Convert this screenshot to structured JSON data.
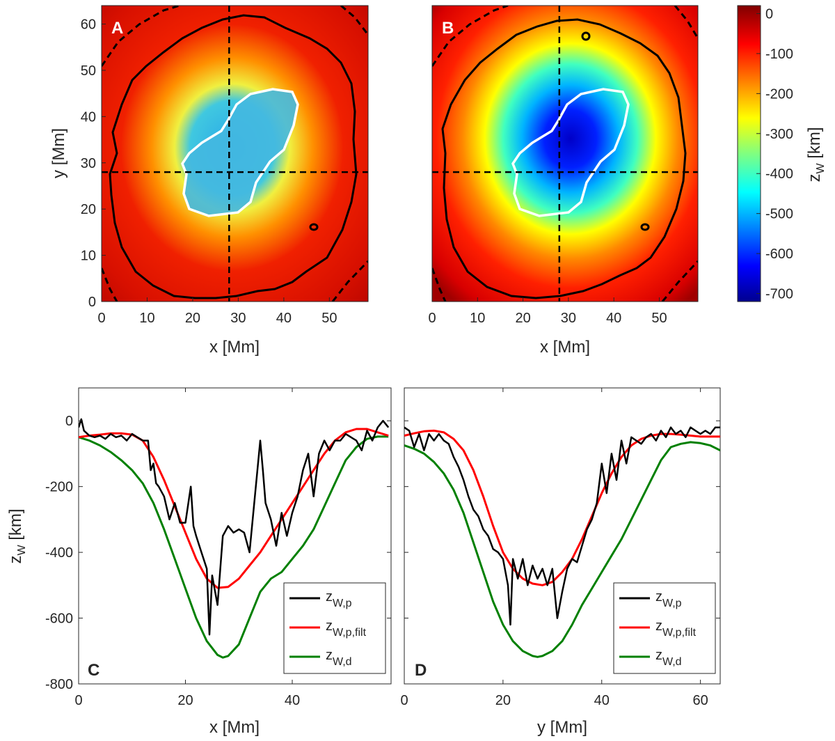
{
  "colors": {
    "black_series": "#000000",
    "red_series": "#ff0000",
    "green_series": "#008000",
    "umbra_contour": "#ffffff",
    "axes": "#262626"
  },
  "chart_data": [
    {
      "panel": "A",
      "type": "heatmap",
      "title": "",
      "xlabel": "x [Mm]",
      "ylabel": "y [Mm]",
      "xlim": [
        0,
        58.5
      ],
      "ylim": [
        0,
        64
      ],
      "xticks": [
        0,
        10,
        20,
        30,
        40,
        50
      ],
      "yticks": [
        0,
        10,
        20,
        30,
        40,
        50,
        60
      ],
      "crosshair": {
        "x": 28,
        "y": 28
      },
      "value_range": [
        -720,
        20
      ],
      "colormap": "jet"
    },
    {
      "panel": "B",
      "type": "heatmap",
      "title": "",
      "xlabel": "x [Mm]",
      "ylabel": "",
      "xlim": [
        0,
        58.5
      ],
      "ylim": [
        0,
        64
      ],
      "xticks": [
        0,
        10,
        20,
        30,
        40,
        50
      ],
      "crosshair": {
        "x": 28,
        "y": 28
      },
      "value_range": [
        -720,
        20
      ],
      "colormap": "jet"
    },
    {
      "panel": "colorbar",
      "type": "heatmap",
      "label": "z",
      "label_sub": "W",
      "label_unit": " [km]",
      "range": [
        -720,
        20
      ],
      "ticks": [
        0,
        -100,
        -200,
        -300,
        -400,
        -500,
        -600,
        -700
      ]
    },
    {
      "panel": "C",
      "type": "line",
      "title": "",
      "xlabel": "x [Mm]",
      "ylabel": "z",
      "ylabel_sub": "W",
      "ylabel_unit": " [km]",
      "xlim": [
        0,
        58.5
      ],
      "ylim": [
        -800,
        100
      ],
      "xticks": [
        0,
        20,
        40
      ],
      "yticks": [
        0,
        -200,
        -400,
        -600,
        -800
      ],
      "legend_placement": "bottom-right",
      "series": [
        {
          "name": "z",
          "sub": "W,p",
          "color": "#000000",
          "x": [
            0,
            0.5,
            1,
            2,
            3,
            4,
            5,
            6,
            7,
            8,
            9,
            10,
            11,
            12,
            13,
            13.5,
            14,
            14.5,
            15,
            16,
            17,
            18,
            19,
            20,
            21,
            21.5,
            22,
            23,
            24,
            24.5,
            25,
            26,
            27,
            28,
            29,
            30,
            31,
            32,
            33,
            34,
            34.5,
            35,
            36,
            37,
            38,
            39,
            40,
            41,
            42,
            43,
            44,
            45,
            46,
            47,
            48,
            49,
            50,
            51,
            52,
            53,
            54,
            55,
            56,
            57,
            58
          ],
          "y": [
            -20,
            5,
            -30,
            -45,
            -50,
            -45,
            -55,
            -40,
            -50,
            -45,
            -60,
            -40,
            -50,
            -60,
            -60,
            -150,
            -130,
            -190,
            -200,
            -230,
            -300,
            -250,
            -310,
            -310,
            -200,
            -320,
            -350,
            -400,
            -450,
            -650,
            -470,
            -560,
            -350,
            -320,
            -340,
            -330,
            -340,
            -400,
            -230,
            -60,
            -150,
            -250,
            -300,
            -380,
            -280,
            -350,
            -280,
            -230,
            -150,
            -100,
            -230,
            -100,
            -60,
            -90,
            -60,
            -60,
            -40,
            -50,
            -60,
            -90,
            -30,
            -60,
            -20,
            0,
            -20
          ]
        },
        {
          "name": "z",
          "sub": "W,p,filt",
          "color": "#ff0000",
          "x": [
            0,
            2,
            4,
            6,
            8,
            10,
            12,
            14,
            16,
            18,
            20,
            22,
            24,
            26,
            28,
            30,
            32,
            34,
            36,
            38,
            40,
            42,
            44,
            46,
            48,
            50,
            52,
            54,
            56,
            58
          ],
          "y": [
            -50,
            -45,
            -42,
            -38,
            -38,
            -42,
            -60,
            -110,
            -180,
            -260,
            -340,
            -420,
            -480,
            -508,
            -505,
            -480,
            -440,
            -400,
            -350,
            -300,
            -250,
            -200,
            -150,
            -100,
            -60,
            -35,
            -25,
            -25,
            -35,
            -45
          ]
        },
        {
          "name": "z",
          "sub": "W,d",
          "color": "#008000",
          "x": [
            0,
            2,
            4,
            6,
            8,
            10,
            12,
            14,
            16,
            18,
            20,
            22,
            24,
            26,
            27,
            28,
            30,
            32,
            34,
            36,
            38,
            40,
            42,
            44,
            46,
            48,
            50,
            52,
            54,
            56,
            58
          ],
          "y": [
            -50,
            -60,
            -75,
            -95,
            -120,
            -150,
            -190,
            -250,
            -330,
            -420,
            -510,
            -600,
            -670,
            -712,
            -720,
            -715,
            -680,
            -600,
            -520,
            -480,
            -460,
            -420,
            -380,
            -330,
            -260,
            -190,
            -120,
            -80,
            -55,
            -48,
            -48
          ]
        }
      ]
    },
    {
      "panel": "D",
      "type": "line",
      "title": "",
      "xlabel": "y [Mm]",
      "ylabel": "",
      "xlim": [
        0,
        64
      ],
      "ylim": [
        -800,
        100
      ],
      "xticks": [
        0,
        20,
        40,
        60
      ],
      "legend_placement": "bottom-right",
      "series": [
        {
          "name": "z",
          "sub": "W,p",
          "color": "#000000",
          "x": [
            0,
            1,
            2,
            3,
            4,
            5,
            6,
            7,
            8,
            9,
            10,
            11,
            12,
            13,
            14,
            15,
            16,
            17,
            18,
            19,
            20,
            21,
            21.5,
            22,
            23,
            24,
            25,
            26,
            27,
            28,
            29,
            30,
            31,
            32,
            33,
            34,
            35,
            36,
            37,
            38,
            39,
            40,
            41,
            42,
            43,
            44,
            45,
            46,
            47,
            48,
            49,
            50,
            51,
            52,
            53,
            54,
            55,
            56,
            57,
            58,
            59,
            60,
            61,
            62,
            63,
            64
          ],
          "y": [
            -20,
            -30,
            -80,
            -40,
            -90,
            -40,
            -60,
            -40,
            -60,
            -70,
            -110,
            -140,
            -180,
            -230,
            -270,
            -290,
            -330,
            -350,
            -390,
            -400,
            -420,
            -500,
            -620,
            -420,
            -480,
            -420,
            -500,
            -440,
            -480,
            -450,
            -500,
            -450,
            -600,
            -520,
            -450,
            -420,
            -430,
            -380,
            -330,
            -300,
            -250,
            -130,
            -220,
            -100,
            -180,
            -60,
            -130,
            -50,
            -60,
            -70,
            -50,
            -40,
            -60,
            -30,
            -50,
            -20,
            -40,
            -30,
            -50,
            -20,
            -30,
            -40,
            -30,
            -40,
            -20,
            -20
          ]
        },
        {
          "name": "z",
          "sub": "W,p,filt",
          "color": "#ff0000",
          "x": [
            0,
            2,
            4,
            6,
            8,
            10,
            12,
            14,
            16,
            18,
            20,
            22,
            24,
            26,
            28,
            30,
            32,
            34,
            36,
            38,
            40,
            42,
            44,
            46,
            48,
            50,
            52,
            54,
            56,
            58,
            60,
            62,
            64
          ],
          "y": [
            -45,
            -38,
            -32,
            -30,
            -35,
            -55,
            -90,
            -150,
            -230,
            -320,
            -400,
            -450,
            -480,
            -495,
            -500,
            -490,
            -460,
            -420,
            -360,
            -290,
            -220,
            -160,
            -110,
            -75,
            -55,
            -45,
            -40,
            -40,
            -42,
            -45,
            -48,
            -48,
            -48
          ]
        },
        {
          "name": "z",
          "sub": "W,d",
          "color": "#008000",
          "x": [
            0,
            2,
            4,
            6,
            8,
            10,
            12,
            14,
            16,
            18,
            20,
            22,
            24,
            26,
            27,
            28,
            30,
            32,
            34,
            36,
            38,
            40,
            42,
            44,
            46,
            48,
            50,
            52,
            54,
            56,
            58,
            60,
            62,
            64
          ],
          "y": [
            -75,
            -85,
            -100,
            -125,
            -160,
            -210,
            -280,
            -370,
            -460,
            -550,
            -620,
            -670,
            -700,
            -715,
            -718,
            -715,
            -700,
            -670,
            -620,
            -560,
            -510,
            -460,
            -410,
            -360,
            -300,
            -240,
            -180,
            -120,
            -80,
            -70,
            -65,
            -68,
            -75,
            -90
          ]
        }
      ]
    }
  ]
}
